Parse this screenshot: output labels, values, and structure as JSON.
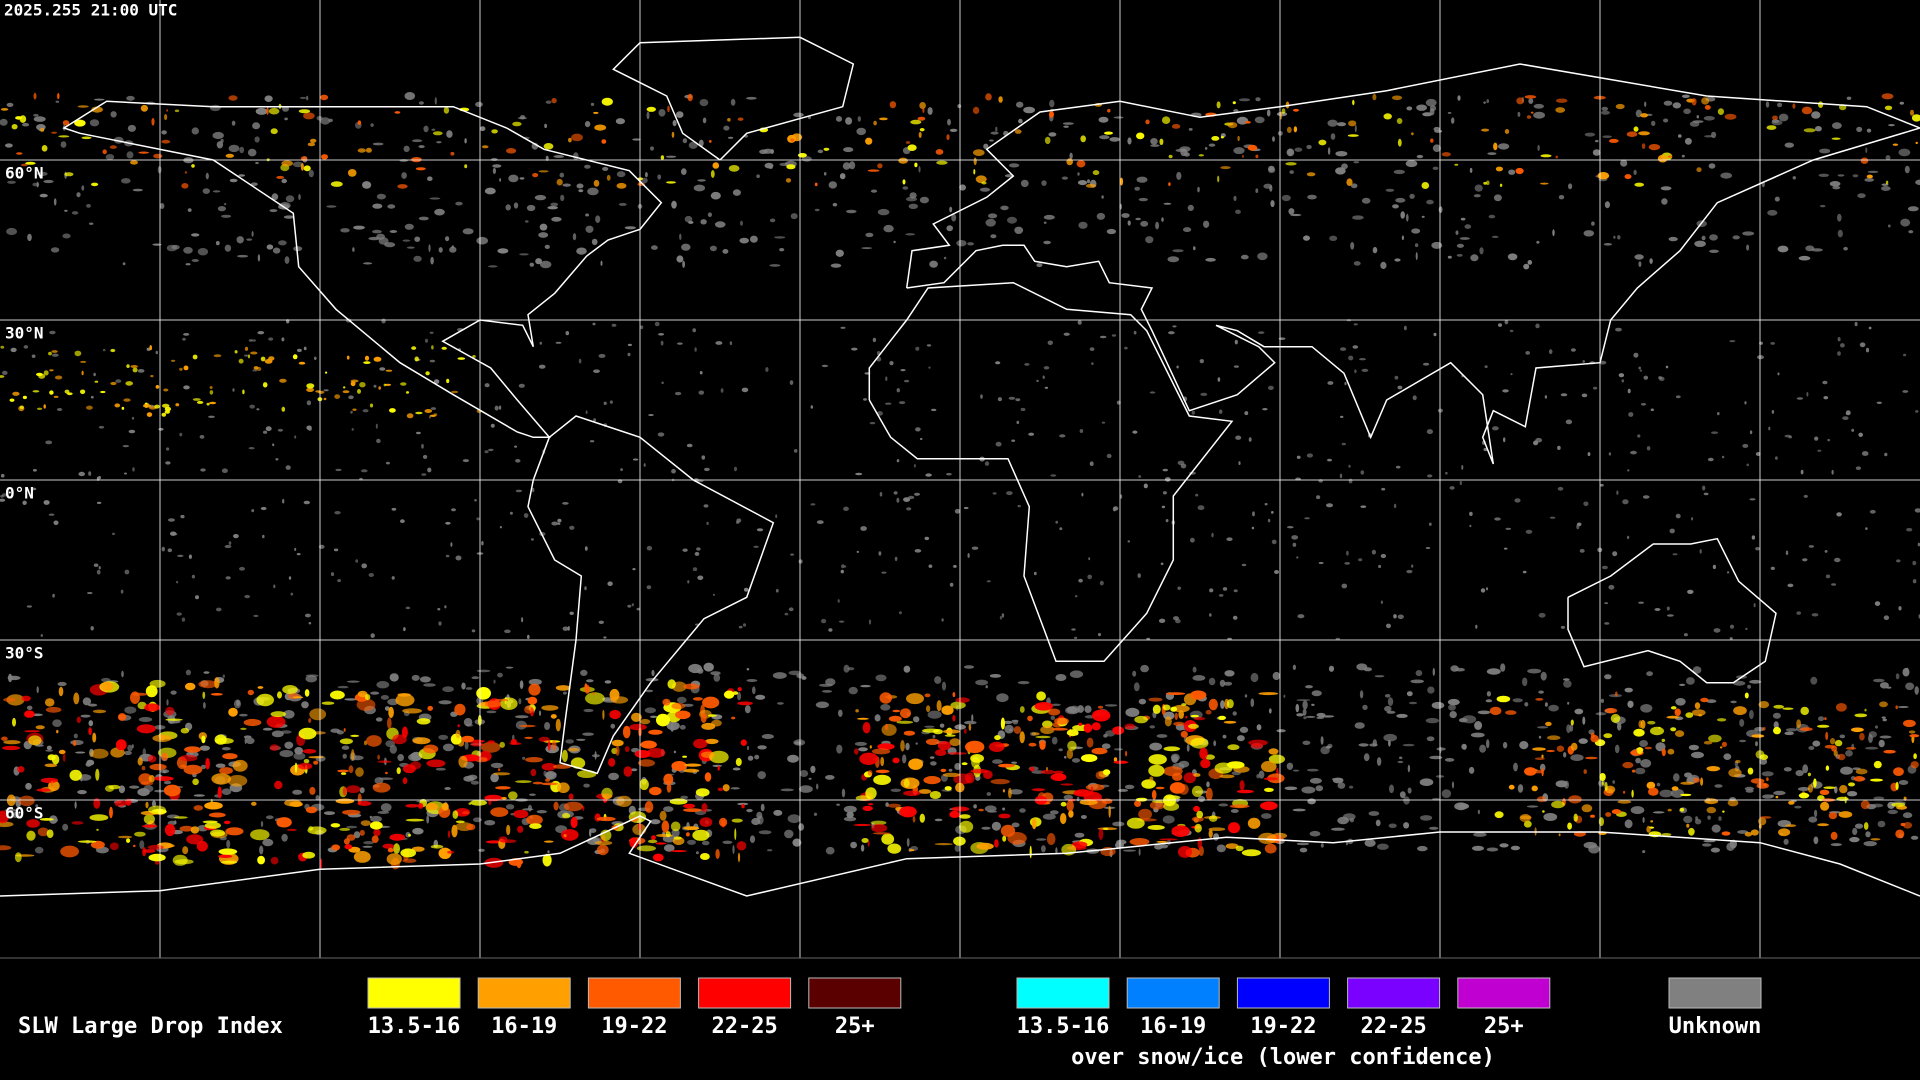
{
  "header": {
    "timestamp": "2025.255 21:00 UTC"
  },
  "map": {
    "latitude_labels": [
      "60°N",
      "30°N",
      "0°N",
      "30°S",
      "60°S"
    ]
  },
  "legend": {
    "title": "SLW Large Drop Index",
    "groups": [
      {
        "items": [
          {
            "label": "13.5-16",
            "color": "#ffff00"
          },
          {
            "label": "16-19",
            "color": "#ffa000"
          },
          {
            "label": "19-22",
            "color": "#ff5a00"
          },
          {
            "label": "22-25",
            "color": "#ff0000"
          },
          {
            "label": "25+",
            "color": "#5a0000"
          }
        ]
      },
      {
        "items": [
          {
            "label": "13.5-16",
            "color": "#00ffff"
          },
          {
            "label": "16-19",
            "color": "#0080ff"
          },
          {
            "label": "19-22",
            "color": "#0000ff"
          },
          {
            "label": "22-25",
            "color": "#7a00ff"
          },
          {
            "label": "25+",
            "color": "#c000d0"
          }
        ],
        "caption": "over snow/ice (lower confidence)"
      }
    ],
    "unknown": {
      "label": "Unknown",
      "color": "#808080"
    }
  }
}
